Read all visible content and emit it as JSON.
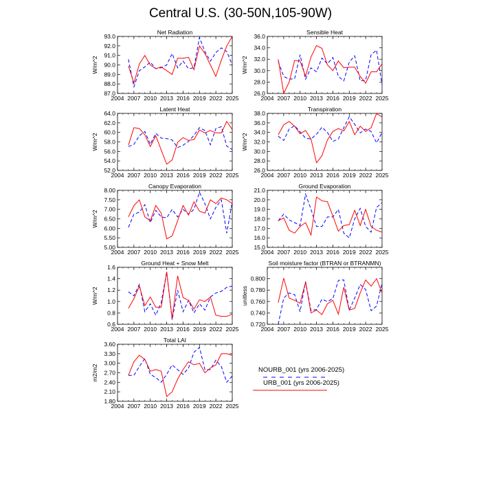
{
  "title": "Central U.S. (30-50N,105-90W)",
  "legend": [
    {
      "label": "NOURB_001 (yrs 2006-2025)",
      "color": "#0000ff",
      "dash": true
    },
    {
      "label": "URB_001 (yrs 2006-2025)",
      "color": "#ff0000",
      "dash": false
    }
  ],
  "chart_data": [
    {
      "type": "line",
      "title": "Net Radiation",
      "ylabel": "W/m^2",
      "xlim": [
        2004,
        2025
      ],
      "ylim": [
        87.0,
        93.0
      ],
      "xticks": [
        "2004",
        "2007",
        "2010",
        "2013",
        "2016",
        "2019",
        "2022",
        "2025"
      ],
      "yticks": [
        "87.0",
        "88.0",
        "89.0",
        "90.0",
        "91.0",
        "92.0",
        "93.0"
      ],
      "x": [
        2006,
        2007,
        2008,
        2009,
        2010,
        2011,
        2012,
        2013,
        2014,
        2015,
        2016,
        2017,
        2018,
        2019,
        2020,
        2021,
        2022,
        2023,
        2024,
        2025
      ],
      "series": [
        {
          "name": "NOURB_001 (yrs 2006-2025)",
          "values": [
            90.6,
            87.7,
            89.4,
            89.8,
            90.3,
            89.6,
            89.7,
            90.0,
            91.2,
            89.7,
            90.4,
            89.6,
            89.7,
            92.9,
            91.4,
            90.4,
            91.3,
            91.8,
            91.4,
            90.0
          ]
        },
        {
          "name": "URB_001 (yrs 2006-2025)",
          "values": [
            89.9,
            88.1,
            90.1,
            91.0,
            90.0,
            89.6,
            89.8,
            89.4,
            89.0,
            90.7,
            90.7,
            90.8,
            89.5,
            92.0,
            91.2,
            90.0,
            88.8,
            90.5,
            92.0,
            93.0
          ]
        }
      ]
    },
    {
      "type": "line",
      "title": "Sensible Heat",
      "ylabel": "W/m^2",
      "xlim": [
        2004,
        2025
      ],
      "ylim": [
        26.0,
        36.0
      ],
      "xticks": [
        "2004",
        "2007",
        "2010",
        "2013",
        "2016",
        "2019",
        "2022",
        "2025"
      ],
      "yticks": [
        "26.0",
        "28.0",
        "30.0",
        "32.0",
        "34.0",
        "36.0"
      ],
      "x": [
        2006,
        2007,
        2008,
        2009,
        2010,
        2011,
        2012,
        2013,
        2014,
        2015,
        2016,
        2017,
        2018,
        2019,
        2020,
        2021,
        2022,
        2023,
        2024,
        2025
      ],
      "series": [
        {
          "name": "NOURB_001 (yrs 2006-2025)",
          "values": [
            31.6,
            29.0,
            28.5,
            28.6,
            32.8,
            28.5,
            30.5,
            29.8,
            32.2,
            31.2,
            32.3,
            29.0,
            28.2,
            31.5,
            32.6,
            28.2,
            28.3,
            32.8,
            33.6,
            27.5
          ]
        },
        {
          "name": "URB_001 (yrs 2006-2025)",
          "values": [
            32.0,
            26.0,
            28.0,
            31.8,
            31.7,
            29.0,
            32.4,
            34.4,
            33.9,
            31.0,
            30.0,
            31.7,
            30.5,
            30.6,
            30.6,
            29.0,
            27.8,
            29.8,
            29.8,
            31.2
          ]
        }
      ]
    },
    {
      "type": "line",
      "title": "Latent Heat",
      "ylabel": "W/m^2",
      "xlim": [
        2004,
        2025
      ],
      "ylim": [
        52.0,
        64.0
      ],
      "xticks": [
        "2004",
        "2007",
        "2010",
        "2013",
        "2016",
        "2019",
        "2022",
        "2025"
      ],
      "yticks": [
        "52.0",
        "54.0",
        "56.0",
        "58.0",
        "60.0",
        "62.0",
        "64.0"
      ],
      "x": [
        2006,
        2007,
        2008,
        2009,
        2010,
        2011,
        2012,
        2013,
        2014,
        2015,
        2016,
        2017,
        2018,
        2019,
        2020,
        2021,
        2022,
        2023,
        2024,
        2025
      ],
      "series": [
        {
          "name": "NOURB_001 (yrs 2006-2025)",
          "values": [
            57.0,
            57.5,
            59.3,
            60.2,
            57.5,
            59.8,
            58.8,
            58.7,
            58.4,
            56.8,
            57.3,
            58.1,
            59.4,
            61.0,
            60.4,
            57.4,
            60.8,
            61.2,
            57.1,
            56.4
          ]
        },
        {
          "name": "URB_001 (yrs 2006-2025)",
          "values": [
            57.3,
            61.0,
            60.8,
            59.5,
            57.0,
            59.3,
            56.3,
            53.3,
            54.2,
            57.9,
            58.9,
            58.3,
            58.5,
            60.5,
            59.9,
            60.4,
            59.9,
            59.9,
            62.3,
            60.6
          ]
        }
      ]
    },
    {
      "type": "line",
      "title": "Transpiration",
      "ylabel": "W/m^2",
      "xlim": [
        2004,
        2025
      ],
      "ylim": [
        26.0,
        38.0
      ],
      "xticks": [
        "2004",
        "2007",
        "2010",
        "2013",
        "2016",
        "2019",
        "2022",
        "2025"
      ],
      "yticks": [
        "26.0",
        "28.0",
        "30.0",
        "32.0",
        "34.0",
        "36.0",
        "38.0"
      ],
      "x": [
        2006,
        2007,
        2008,
        2009,
        2010,
        2011,
        2012,
        2013,
        2014,
        2015,
        2016,
        2017,
        2018,
        2019,
        2020,
        2021,
        2022,
        2023,
        2024,
        2025
      ],
      "series": [
        {
          "name": "NOURB_001 (yrs 2006-2025)",
          "values": [
            33.2,
            32.3,
            34.7,
            35.4,
            34.1,
            32.8,
            32.6,
            33.6,
            35.1,
            34.0,
            32.1,
            32.6,
            35.0,
            37.3,
            35.7,
            33.9,
            34.7,
            34.2,
            31.8,
            34.0
          ]
        },
        {
          "name": "URB_001 (yrs 2006-2025)",
          "values": [
            33.5,
            35.6,
            36.3,
            35.3,
            33.7,
            34.4,
            32.6,
            27.6,
            29.1,
            32.4,
            34.2,
            34.8,
            34.3,
            36.3,
            33.5,
            35.3,
            34.2,
            35.0,
            38.0,
            37.2
          ]
        }
      ]
    },
    {
      "type": "line",
      "title": "Canopy Evaporation",
      "ylabel": "W/m^2",
      "xlim": [
        2004,
        2025
      ],
      "ylim": [
        5.0,
        8.0
      ],
      "xticks": [
        "2004",
        "2007",
        "2010",
        "2013",
        "2016",
        "2019",
        "2022",
        "2025"
      ],
      "yticks": [
        "5.00",
        "5.50",
        "6.00",
        "6.50",
        "7.00",
        "7.50",
        "8.00"
      ],
      "x": [
        2006,
        2007,
        2008,
        2009,
        2010,
        2011,
        2012,
        2013,
        2014,
        2015,
        2016,
        2017,
        2018,
        2019,
        2020,
        2021,
        2022,
        2023,
        2024,
        2025
      ],
      "series": [
        {
          "name": "NOURB_001 (yrs 2006-2025)",
          "values": [
            6.05,
            6.75,
            6.85,
            7.25,
            6.3,
            6.95,
            6.6,
            6.55,
            7.0,
            6.6,
            7.0,
            6.75,
            7.0,
            7.9,
            7.3,
            6.5,
            7.1,
            7.5,
            5.75,
            7.4
          ]
        },
        {
          "name": "URB_001 (yrs 2006-2025)",
          "values": [
            6.6,
            7.2,
            7.5,
            6.6,
            6.4,
            7.2,
            6.8,
            5.45,
            5.6,
            6.4,
            7.2,
            6.7,
            7.4,
            6.9,
            6.8,
            7.5,
            7.3,
            7.6,
            7.5,
            7.3
          ]
        }
      ]
    },
    {
      "type": "line",
      "title": "Ground Evaporation",
      "ylabel": "",
      "xlim": [
        2004,
        2025
      ],
      "ylim": [
        15.0,
        21.0
      ],
      "xticks": [
        "2004",
        "2007",
        "2010",
        "2013",
        "2016",
        "2019",
        "2022",
        "2025"
      ],
      "yticks": [
        "15.0",
        "16.0",
        "17.0",
        "18.0",
        "19.0",
        "20.0",
        "21.0"
      ],
      "x": [
        2006,
        2007,
        2008,
        2009,
        2010,
        2011,
        2012,
        2013,
        2014,
        2015,
        2016,
        2017,
        2018,
        2019,
        2020,
        2021,
        2022,
        2023,
        2024,
        2025
      ],
      "series": [
        {
          "name": "NOURB_001 (yrs 2006-2025)",
          "values": [
            17.8,
            18.5,
            17.9,
            17.6,
            17.3,
            20.6,
            19.0,
            17.2,
            17.2,
            18.2,
            18.2,
            19.0,
            16.5,
            16.0,
            18.0,
            19.1,
            17.2,
            16.6,
            19.2,
            19.7
          ]
        },
        {
          "name": "URB_001 (yrs 2006-2025)",
          "values": [
            17.8,
            18.1,
            16.8,
            16.5,
            17.2,
            17.6,
            16.3,
            20.3,
            19.9,
            19.8,
            18.3,
            16.7,
            17.3,
            17.4,
            18.9,
            17.3,
            19.0,
            17.2,
            16.8,
            16.6
          ]
        }
      ]
    },
    {
      "type": "line",
      "title": "Ground Heat + Snow Melt",
      "ylabel": "W/m^2",
      "xlim": [
        2004,
        2025
      ],
      "ylim": [
        0.6,
        1.6
      ],
      "xticks": [
        "2004",
        "2007",
        "2010",
        "2013",
        "2016",
        "2019",
        "2022",
        "2025"
      ],
      "yticks": [
        "0.6",
        "0.8",
        "1.0",
        "1.2",
        "1.4",
        "1.6"
      ],
      "x": [
        2006,
        2007,
        2008,
        2009,
        2010,
        2011,
        2012,
        2013,
        2014,
        2015,
        2016,
        2017,
        2018,
        2019,
        2020,
        2021,
        2022,
        2023,
        2024,
        2025
      ],
      "series": [
        {
          "name": "NOURB_001 (yrs 2006-2025)",
          "values": [
            1.17,
            1.1,
            1.3,
            0.82,
            0.96,
            0.76,
            0.98,
            1.52,
            0.68,
            1.2,
            0.82,
            1.02,
            0.8,
            0.96,
            0.85,
            1.08,
            1.15,
            1.18,
            1.25,
            1.27
          ]
        },
        {
          "name": "URB_001 (yrs 2006-2025)",
          "values": [
            0.88,
            1.05,
            1.27,
            0.93,
            1.08,
            0.9,
            0.9,
            1.52,
            0.7,
            1.45,
            1.07,
            1.02,
            0.87,
            1.03,
            1.0,
            1.08,
            0.76,
            0.74,
            0.74,
            0.78
          ]
        }
      ]
    },
    {
      "type": "line",
      "title": "Soil moisture factor (BTRAN or BTRANMN)",
      "ylabel": "unitless",
      "xlim": [
        2004,
        2025
      ],
      "ylim": [
        0.72,
        0.82
      ],
      "xticks": [
        "2004",
        "2007",
        "2010",
        "2013",
        "2016",
        "2019",
        "2022",
        "2025"
      ],
      "yticks": [
        "0.720",
        "0.740",
        "0.760",
        "0.780",
        "0.800"
      ],
      "x": [
        2006,
        2007,
        2008,
        2009,
        2010,
        2011,
        2012,
        2013,
        2014,
        2015,
        2016,
        2017,
        2018,
        2019,
        2020,
        2021,
        2022,
        2023,
        2024,
        2025
      ],
      "series": [
        {
          "name": "NOURB_001 (yrs 2006-2025)",
          "values": [
            0.72,
            0.766,
            0.775,
            0.772,
            0.742,
            0.795,
            0.744,
            0.746,
            0.764,
            0.76,
            0.765,
            0.797,
            0.798,
            0.745,
            0.766,
            0.79,
            0.781,
            0.744,
            0.752,
            0.792
          ]
        },
        {
          "name": "URB_001 (yrs 2006-2025)",
          "values": [
            0.758,
            0.801,
            0.766,
            0.762,
            0.757,
            0.794,
            0.74,
            0.745,
            0.737,
            0.756,
            0.762,
            0.738,
            0.785,
            0.745,
            0.748,
            0.775,
            0.798,
            0.787,
            0.8,
            0.775
          ]
        }
      ]
    },
    {
      "type": "line",
      "title": "Total LAI",
      "ylabel": "m2/m2",
      "xlim": [
        2004,
        2025
      ],
      "ylim": [
        1.8,
        3.6
      ],
      "xticks": [
        "2004",
        "2007",
        "2010",
        "2013",
        "2016",
        "2019",
        "2022",
        "2025"
      ],
      "yticks": [
        "1.80",
        "2.10",
        "2.40",
        "2.70",
        "3.00",
        "3.30",
        "3.60"
      ],
      "x": [
        2006,
        2007,
        2008,
        2009,
        2010,
        2011,
        2012,
        2013,
        2014,
        2015,
        2016,
        2017,
        2018,
        2019,
        2020,
        2021,
        2022,
        2023,
        2024,
        2025
      ],
      "series": [
        {
          "name": "NOURB_001 (yrs 2006-2025)",
          "values": [
            2.62,
            2.62,
            2.9,
            3.15,
            2.65,
            2.55,
            2.4,
            2.65,
            2.95,
            2.8,
            2.65,
            2.85,
            3.35,
            3.5,
            2.8,
            2.8,
            3.1,
            2.9,
            2.4,
            2.6
          ]
        },
        {
          "name": "URB_001 (yrs 2006-2025)",
          "values": [
            2.62,
            3.05,
            3.25,
            3.12,
            2.75,
            2.8,
            2.75,
            1.95,
            2.1,
            2.5,
            2.8,
            3.05,
            2.95,
            3.0,
            2.7,
            2.85,
            2.95,
            3.3,
            3.3,
            3.25
          ]
        }
      ]
    }
  ]
}
